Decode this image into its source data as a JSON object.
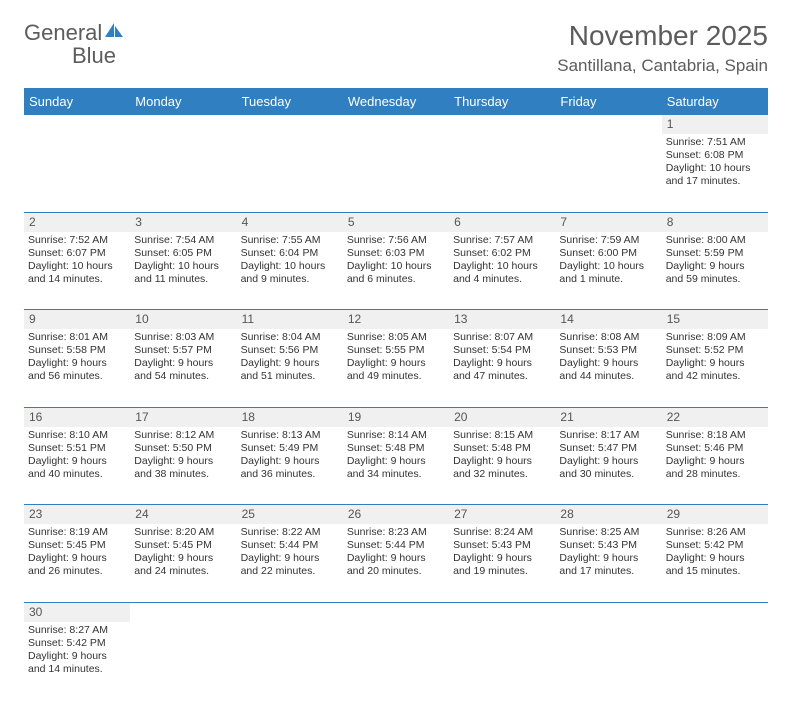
{
  "logo": {
    "part1": "Genera",
    "part2": "l",
    "blue": "Blue"
  },
  "header": {
    "title": "November 2025",
    "location": "Santillana, Cantabria, Spain"
  },
  "colors": {
    "header_bg": "#2f7fc1",
    "header_text": "#ffffff",
    "daynum_bg": "#f0f0f0",
    "row_border": "#2f7fc1",
    "text": "#333333",
    "muted": "#5c5c5c"
  },
  "weekdays": [
    "Sunday",
    "Monday",
    "Tuesday",
    "Wednesday",
    "Thursday",
    "Friday",
    "Saturday"
  ],
  "weeks": [
    [
      null,
      null,
      null,
      null,
      null,
      null,
      {
        "n": "1",
        "sunrise": "7:51 AM",
        "sunset": "6:08 PM",
        "daylight": "10 hours and 17 minutes."
      }
    ],
    [
      {
        "n": "2",
        "sunrise": "7:52 AM",
        "sunset": "6:07 PM",
        "daylight": "10 hours and 14 minutes."
      },
      {
        "n": "3",
        "sunrise": "7:54 AM",
        "sunset": "6:05 PM",
        "daylight": "10 hours and 11 minutes."
      },
      {
        "n": "4",
        "sunrise": "7:55 AM",
        "sunset": "6:04 PM",
        "daylight": "10 hours and 9 minutes."
      },
      {
        "n": "5",
        "sunrise": "7:56 AM",
        "sunset": "6:03 PM",
        "daylight": "10 hours and 6 minutes."
      },
      {
        "n": "6",
        "sunrise": "7:57 AM",
        "sunset": "6:02 PM",
        "daylight": "10 hours and 4 minutes."
      },
      {
        "n": "7",
        "sunrise": "7:59 AM",
        "sunset": "6:00 PM",
        "daylight": "10 hours and 1 minute."
      },
      {
        "n": "8",
        "sunrise": "8:00 AM",
        "sunset": "5:59 PM",
        "daylight": "9 hours and 59 minutes."
      }
    ],
    [
      {
        "n": "9",
        "sunrise": "8:01 AM",
        "sunset": "5:58 PM",
        "daylight": "9 hours and 56 minutes."
      },
      {
        "n": "10",
        "sunrise": "8:03 AM",
        "sunset": "5:57 PM",
        "daylight": "9 hours and 54 minutes."
      },
      {
        "n": "11",
        "sunrise": "8:04 AM",
        "sunset": "5:56 PM",
        "daylight": "9 hours and 51 minutes."
      },
      {
        "n": "12",
        "sunrise": "8:05 AM",
        "sunset": "5:55 PM",
        "daylight": "9 hours and 49 minutes."
      },
      {
        "n": "13",
        "sunrise": "8:07 AM",
        "sunset": "5:54 PM",
        "daylight": "9 hours and 47 minutes."
      },
      {
        "n": "14",
        "sunrise": "8:08 AM",
        "sunset": "5:53 PM",
        "daylight": "9 hours and 44 minutes."
      },
      {
        "n": "15",
        "sunrise": "8:09 AM",
        "sunset": "5:52 PM",
        "daylight": "9 hours and 42 minutes."
      }
    ],
    [
      {
        "n": "16",
        "sunrise": "8:10 AM",
        "sunset": "5:51 PM",
        "daylight": "9 hours and 40 minutes."
      },
      {
        "n": "17",
        "sunrise": "8:12 AM",
        "sunset": "5:50 PM",
        "daylight": "9 hours and 38 minutes."
      },
      {
        "n": "18",
        "sunrise": "8:13 AM",
        "sunset": "5:49 PM",
        "daylight": "9 hours and 36 minutes."
      },
      {
        "n": "19",
        "sunrise": "8:14 AM",
        "sunset": "5:48 PM",
        "daylight": "9 hours and 34 minutes."
      },
      {
        "n": "20",
        "sunrise": "8:15 AM",
        "sunset": "5:48 PM",
        "daylight": "9 hours and 32 minutes."
      },
      {
        "n": "21",
        "sunrise": "8:17 AM",
        "sunset": "5:47 PM",
        "daylight": "9 hours and 30 minutes."
      },
      {
        "n": "22",
        "sunrise": "8:18 AM",
        "sunset": "5:46 PM",
        "daylight": "9 hours and 28 minutes."
      }
    ],
    [
      {
        "n": "23",
        "sunrise": "8:19 AM",
        "sunset": "5:45 PM",
        "daylight": "9 hours and 26 minutes."
      },
      {
        "n": "24",
        "sunrise": "8:20 AM",
        "sunset": "5:45 PM",
        "daylight": "9 hours and 24 minutes."
      },
      {
        "n": "25",
        "sunrise": "8:22 AM",
        "sunset": "5:44 PM",
        "daylight": "9 hours and 22 minutes."
      },
      {
        "n": "26",
        "sunrise": "8:23 AM",
        "sunset": "5:44 PM",
        "daylight": "9 hours and 20 minutes."
      },
      {
        "n": "27",
        "sunrise": "8:24 AM",
        "sunset": "5:43 PM",
        "daylight": "9 hours and 19 minutes."
      },
      {
        "n": "28",
        "sunrise": "8:25 AM",
        "sunset": "5:43 PM",
        "daylight": "9 hours and 17 minutes."
      },
      {
        "n": "29",
        "sunrise": "8:26 AM",
        "sunset": "5:42 PM",
        "daylight": "9 hours and 15 minutes."
      }
    ],
    [
      {
        "n": "30",
        "sunrise": "8:27 AM",
        "sunset": "5:42 PM",
        "daylight": "9 hours and 14 minutes."
      },
      null,
      null,
      null,
      null,
      null,
      null
    ]
  ],
  "labels": {
    "sunrise": "Sunrise: ",
    "sunset": "Sunset: ",
    "daylight": "Daylight: "
  }
}
